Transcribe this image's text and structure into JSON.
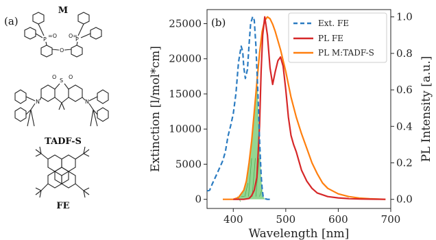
{
  "panel_a": {
    "label": "(a)",
    "molecules": [
      {
        "name": "M",
        "icon": "dpepo-molecule-icon"
      },
      {
        "name": "TADF-S",
        "icon": "acridine-sulfone-molecule-icon"
      },
      {
        "name": "FE",
        "icon": "tetra-tert-butylperylene-molecule-icon"
      }
    ]
  },
  "chart_data": {
    "type": "line",
    "panel_label": "(b)",
    "xlabel": "Wavelength [nm]",
    "ylabel_left": "Extinction [l/mol*cm]",
    "ylabel_right": "PL Intensity [a.u.]",
    "xlim": [
      350,
      700
    ],
    "ylim_left": [
      -1300,
      27000
    ],
    "ylim_right": [
      -0.05,
      1.04
    ],
    "xticks": [
      400,
      500,
      600,
      700
    ],
    "yticks_left": [
      0,
      5000,
      10000,
      15000,
      20000,
      25000
    ],
    "yticks_right": [
      0.0,
      0.2,
      0.4,
      0.6,
      0.8,
      1.0
    ],
    "grid": false,
    "legend_position": "top-right",
    "colors": {
      "ext_fe": "#2a7bc1",
      "pl_fe": "#d62728",
      "pl_m_tadf": "#ff7f0e",
      "overlap_fill": "#7fcf7f"
    },
    "series": [
      {
        "name": "Ext. FE",
        "axis": "left",
        "style": "dashed",
        "x": [
          350,
          355,
          360,
          370,
          380,
          385,
          390,
          395,
          400,
          405,
          410,
          415,
          418,
          420,
          423,
          427,
          430,
          433,
          437,
          440,
          443,
          447,
          450,
          453,
          455,
          457,
          460,
          465,
          470
        ],
        "y": [
          1200,
          1300,
          2200,
          3800,
          5500,
          6800,
          9000,
          10500,
          12200,
          15000,
          19500,
          21800,
          21000,
          18800,
          17200,
          18500,
          22000,
          25000,
          26000,
          25500,
          22000,
          15000,
          8500,
          3500,
          1500,
          400,
          100,
          0,
          0
        ]
      },
      {
        "name": "PL FE",
        "axis": "right",
        "style": "solid",
        "x": [
          400,
          420,
          430,
          435,
          440,
          445,
          450,
          453,
          456,
          460,
          465,
          470,
          475,
          480,
          485,
          490,
          495,
          500,
          505,
          510,
          515,
          520,
          525,
          530,
          540,
          550,
          560,
          580,
          600,
          620,
          640,
          660,
          690
        ],
        "y": [
          0.0,
          0.0,
          0.005,
          0.02,
          0.05,
          0.12,
          0.4,
          0.7,
          0.9,
          1.0,
          0.9,
          0.72,
          0.63,
          0.7,
          0.76,
          0.78,
          0.73,
          0.6,
          0.45,
          0.35,
          0.3,
          0.26,
          0.21,
          0.16,
          0.1,
          0.06,
          0.035,
          0.015,
          0.008,
          0.004,
          0.002,
          0.001,
          0.0
        ]
      },
      {
        "name": "PL M:TADF-S",
        "axis": "right",
        "style": "solid",
        "x": [
          380,
          400,
          410,
          420,
          425,
          430,
          435,
          440,
          445,
          450,
          455,
          460,
          465,
          470,
          475,
          480,
          490,
          500,
          510,
          520,
          530,
          540,
          550,
          560,
          570,
          580,
          600,
          620,
          640,
          660,
          690
        ],
        "y": [
          0.0,
          0.0,
          0.01,
          0.05,
          0.1,
          0.2,
          0.32,
          0.48,
          0.64,
          0.8,
          0.92,
          0.98,
          1.0,
          0.99,
          0.96,
          0.92,
          0.82,
          0.7,
          0.56,
          0.45,
          0.36,
          0.28,
          0.2,
          0.14,
          0.09,
          0.06,
          0.03,
          0.015,
          0.007,
          0.003,
          0.0
        ]
      }
    ],
    "shaded_overlap": {
      "between": [
        "Ext. FE",
        "PL M:TADF-S"
      ],
      "x_range": [
        400,
        460
      ]
    }
  }
}
